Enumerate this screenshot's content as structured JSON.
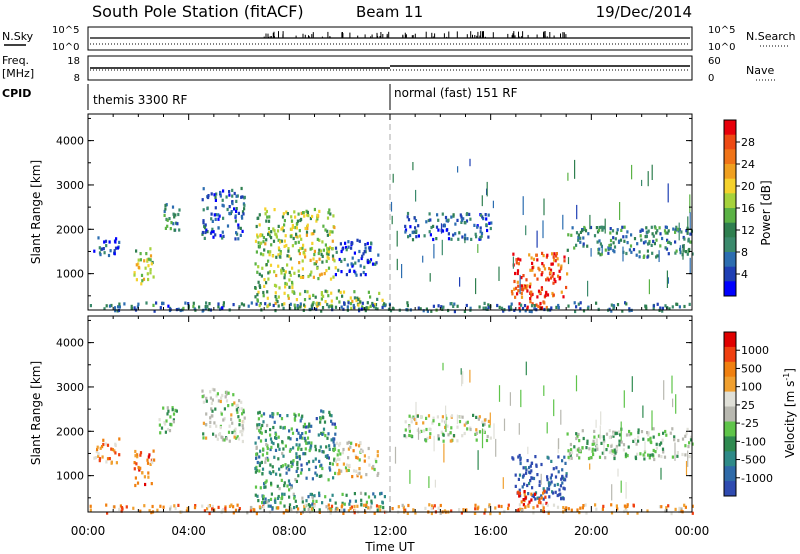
{
  "header": {
    "station": "South Pole Station (fitACF)",
    "beam": "Beam 11",
    "date": "19/Dec/2014"
  },
  "status_panels": {
    "nsky_label": "N.Sky",
    "nsky_ticks_left": [
      "10^5",
      "10^0"
    ],
    "nsearch_label": "N.Search",
    "nsearch_ticks_right": [
      "10^5",
      "10^0"
    ],
    "freq_label_line1": "Freq.",
    "freq_label_line2": "[MHz]",
    "freq_ticks": [
      "18",
      "8"
    ],
    "nave_label": "Nave",
    "nave_ticks": [
      "60",
      "0"
    ],
    "cpid_label": "CPID",
    "cpid_segments": [
      {
        "label": "themis 3300 RF",
        "start_hour": 0
      },
      {
        "label": "normal (fast) 151 RF",
        "start_hour": 12
      }
    ]
  },
  "chart_data": [
    {
      "type": "heatmap",
      "name": "power",
      "x_range_hours": [
        0,
        24
      ],
      "xticks": [
        "00:00",
        "04:00",
        "08:00",
        "12:00",
        "16:00",
        "20:00",
        "00:00"
      ],
      "ylabel": "Slant Range [km]",
      "ylim": [
        180,
        4600
      ],
      "yticks": [
        "1000",
        "2000",
        "3000",
        "4000"
      ],
      "colorbar_label": "Power [dB]",
      "colorbar_ticks": [
        "4",
        "8",
        "12",
        "16",
        "20",
        "24",
        "28"
      ],
      "colorbar_colors": [
        "#0000ff",
        "#1f3fb4",
        "#2c6db0",
        "#3b8a6c",
        "#2f7f4f",
        "#5bb245",
        "#a6d23c",
        "#f5d22d",
        "#f0a020",
        "#f07418",
        "#ee4a14",
        "#e8000b"
      ],
      "regions": [
        {
          "t0": 0.2,
          "t1": 1.2,
          "r0": 1400,
          "r1": 1900,
          "level": 0.15
        },
        {
          "t0": 1.8,
          "t1": 2.6,
          "r0": 800,
          "r1": 1600,
          "level": 0.55
        },
        {
          "t0": 2.8,
          "t1": 3.6,
          "r0": 2000,
          "r1": 2600,
          "level": 0.3
        },
        {
          "t0": 4.5,
          "t1": 6.2,
          "r0": 1800,
          "r1": 3000,
          "level": 0.2
        },
        {
          "t0": 6.6,
          "t1": 8.2,
          "r0": 700,
          "r1": 2500,
          "level": 0.5
        },
        {
          "t0": 8.2,
          "t1": 9.8,
          "r0": 900,
          "r1": 2500,
          "level": 0.55
        },
        {
          "t0": 9.8,
          "t1": 11.5,
          "r0": 1000,
          "r1": 1800,
          "level": 0.15
        },
        {
          "t0": 12.5,
          "t1": 16.0,
          "r0": 1800,
          "r1": 2400,
          "level": 0.2
        },
        {
          "t0": 16.8,
          "t1": 19.0,
          "r0": 500,
          "r1": 1500,
          "level": 0.85
        },
        {
          "t0": 17.0,
          "t1": 18.2,
          "r0": 220,
          "r1": 700,
          "level": 0.9
        },
        {
          "t0": 19.0,
          "t1": 24.0,
          "r0": 1400,
          "r1": 2100,
          "level": 0.3
        },
        {
          "t0": 6.6,
          "t1": 11.8,
          "r0": 250,
          "r1": 650,
          "level": 0.5
        },
        {
          "t0": 0.0,
          "t1": 24.0,
          "r0": 180,
          "r1": 380,
          "level": 0.25
        }
      ]
    },
    {
      "type": "heatmap",
      "name": "velocity",
      "x_range_hours": [
        0,
        24
      ],
      "xticks": [
        "00:00",
        "04:00",
        "08:00",
        "12:00",
        "16:00",
        "20:00",
        "00:00"
      ],
      "xlabel": "Time UT",
      "ylabel": "Slant Range [km]",
      "ylim": [
        180,
        4600
      ],
      "yticks": [
        "1000",
        "2000",
        "3000",
        "4000"
      ],
      "colorbar_label": "Velocity [m s-1]",
      "colorbar_ticks": [
        "1000",
        "500",
        "100",
        "25",
        "-25",
        "-100",
        "-500",
        "-1000"
      ],
      "colorbar_colors": [
        "#2f4bb0",
        "#2f6aa8",
        "#2f8a88",
        "#2f8a50",
        "#5fc44a",
        "#b8b8b0",
        "#e0e0d8",
        "#f0a030",
        "#f08010",
        "#f04010",
        "#e00000"
      ],
      "regions": [
        {
          "t0": 0.2,
          "t1": 1.2,
          "r0": 1300,
          "r1": 1900,
          "level": 0.7
        },
        {
          "t0": 1.8,
          "t1": 2.6,
          "r0": 800,
          "r1": 1600,
          "level": 0.8
        },
        {
          "t0": 2.8,
          "t1": 3.6,
          "r0": 2000,
          "r1": 2600,
          "level": 0.45
        },
        {
          "t0": 4.5,
          "t1": 6.2,
          "r0": 1800,
          "r1": 3000,
          "level": 0.5
        },
        {
          "t0": 6.6,
          "t1": 8.2,
          "r0": 700,
          "r1": 2500,
          "level": 0.3
        },
        {
          "t0": 8.2,
          "t1": 9.8,
          "r0": 900,
          "r1": 2500,
          "level": 0.25
        },
        {
          "t0": 9.8,
          "t1": 11.5,
          "r0": 1000,
          "r1": 1800,
          "level": 0.6
        },
        {
          "t0": 12.5,
          "t1": 16.0,
          "r0": 1800,
          "r1": 2400,
          "level": 0.5
        },
        {
          "t0": 16.8,
          "t1": 19.0,
          "r0": 500,
          "r1": 1500,
          "level": 0.05
        },
        {
          "t0": 17.0,
          "t1": 18.2,
          "r0": 220,
          "r1": 700,
          "level": 0.85
        },
        {
          "t0": 19.0,
          "t1": 24.0,
          "r0": 1400,
          "r1": 2100,
          "level": 0.45
        },
        {
          "t0": 6.6,
          "t1": 11.8,
          "r0": 250,
          "r1": 650,
          "level": 0.3
        },
        {
          "t0": 0.0,
          "t1": 24.0,
          "r0": 180,
          "r1": 380,
          "level": 0.7
        }
      ]
    }
  ]
}
